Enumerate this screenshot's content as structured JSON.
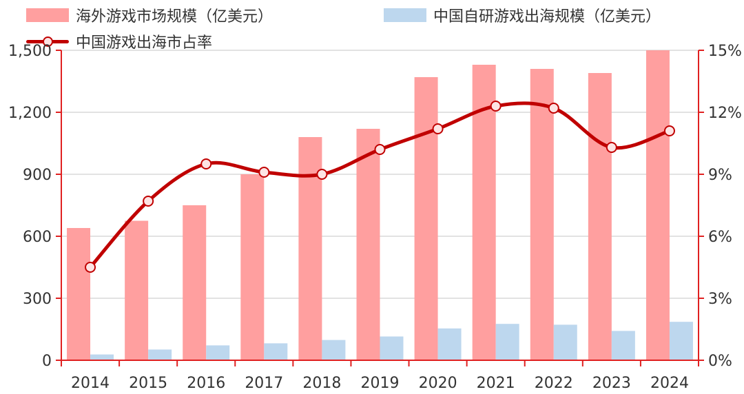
{
  "colors": {
    "bar_total": "#ff9f9f",
    "bar_china": "#bdd7ee",
    "line": "#c00000",
    "marker_fill": "#fde4e4",
    "axis": "#e02020",
    "grid": "#d9d9d9"
  },
  "legend": {
    "series_total": "海外游戏市场规模（亿美元）",
    "series_china": "中国自研游戏出海规模（亿美元）",
    "series_share": "中国游戏出海市占率"
  },
  "chart_data": {
    "type": "bar",
    "categories": [
      "2014",
      "2015",
      "2016",
      "2017",
      "2018",
      "2019",
      "2020",
      "2021",
      "2022",
      "2023",
      "2024"
    ],
    "series": [
      {
        "name": "海外游戏市场规模（亿美元）",
        "type": "bar",
        "axis": "left",
        "values": [
          640,
          675,
          750,
          900,
          1080,
          1120,
          1370,
          1430,
          1410,
          1390,
          1500
        ]
      },
      {
        "name": "中国自研游戏出海规模（亿美元）",
        "type": "bar",
        "axis": "left",
        "values": [
          28,
          52,
          72,
          82,
          98,
          115,
          154,
          176,
          172,
          142,
          186
        ]
      },
      {
        "name": "中国游戏出海市占率",
        "type": "line",
        "axis": "right",
        "values": [
          4.5,
          7.7,
          9.5,
          9.1,
          9.0,
          10.2,
          11.2,
          12.3,
          12.2,
          10.3,
          11.1
        ]
      }
    ],
    "left_axis": {
      "min": 0,
      "max": 1500,
      "ticks": [
        0,
        300,
        600,
        900,
        1200,
        1500
      ],
      "tick_labels": [
        "0",
        "300",
        "600",
        "900",
        "1,200",
        "1,500"
      ]
    },
    "right_axis": {
      "min": 0,
      "max": 15,
      "ticks": [
        0,
        3,
        6,
        9,
        12,
        15
      ],
      "tick_labels": [
        "0%",
        "3%",
        "6%",
        "9%",
        "12%",
        "15%"
      ]
    },
    "title": "",
    "xlabel": "",
    "ylabel": "",
    "grid": true,
    "legend_position": "top"
  }
}
